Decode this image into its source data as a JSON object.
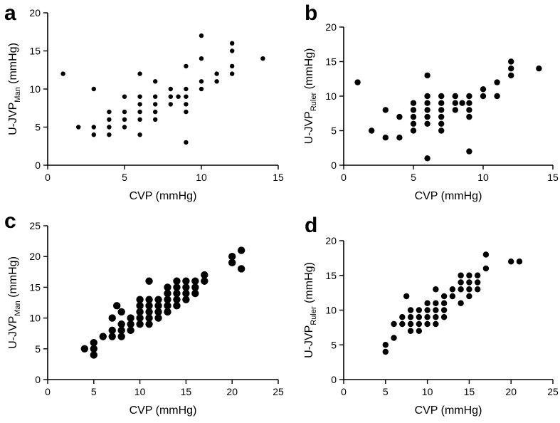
{
  "chart_data": [
    {
      "panel": "a",
      "type": "scatter",
      "xlabel": "CVP (mmHg)",
      "ylabel_main": "U-JVP",
      "ylabel_sub": "Man",
      "ylabel_tail": " (mmHg)",
      "xlim": [
        0,
        15
      ],
      "ylim": [
        0,
        20
      ],
      "xticks": [
        0,
        5,
        10,
        15
      ],
      "yticks": [
        0,
        5,
        10,
        15,
        20
      ],
      "marker": "small",
      "points": [
        [
          1,
          12
        ],
        [
          2,
          5
        ],
        [
          3,
          10
        ],
        [
          3,
          5
        ],
        [
          3,
          4
        ],
        [
          4,
          7
        ],
        [
          4,
          6
        ],
        [
          4,
          5
        ],
        [
          4,
          4
        ],
        [
          5,
          9
        ],
        [
          5,
          7
        ],
        [
          5,
          6
        ],
        [
          5,
          5
        ],
        [
          6,
          12
        ],
        [
          6,
          9
        ],
        [
          6,
          8
        ],
        [
          6,
          7
        ],
        [
          6,
          6
        ],
        [
          6,
          4
        ],
        [
          7,
          11
        ],
        [
          7,
          9
        ],
        [
          7,
          8
        ],
        [
          7,
          7
        ],
        [
          7,
          6
        ],
        [
          8,
          10
        ],
        [
          8,
          9
        ],
        [
          8,
          8
        ],
        [
          8.5,
          9
        ],
        [
          9,
          13
        ],
        [
          9,
          10
        ],
        [
          9,
          9
        ],
        [
          9,
          8
        ],
        [
          9,
          7
        ],
        [
          9,
          3
        ],
        [
          10,
          17
        ],
        [
          10,
          14
        ],
        [
          10,
          11
        ],
        [
          10,
          10
        ],
        [
          11,
          12
        ],
        [
          11,
          11
        ],
        [
          12,
          16
        ],
        [
          12,
          15
        ],
        [
          12,
          13
        ],
        [
          12,
          12
        ],
        [
          14,
          14
        ]
      ]
    },
    {
      "panel": "b",
      "type": "scatter",
      "xlabel": "CVP (mmHg)",
      "ylabel_main": "U-JVP",
      "ylabel_sub": "Ruler",
      "ylabel_tail": " (mmHg)",
      "xlim": [
        0,
        15
      ],
      "ylim": [
        0,
        20
      ],
      "xticks": [
        0,
        5,
        10,
        15
      ],
      "yticks": [
        0,
        5,
        10,
        15,
        20
      ],
      "marker": "medium",
      "points": [
        [
          1,
          12
        ],
        [
          2,
          5
        ],
        [
          3,
          8
        ],
        [
          3,
          4
        ],
        [
          4,
          7
        ],
        [
          4,
          4
        ],
        [
          5,
          9
        ],
        [
          5,
          8
        ],
        [
          5,
          7
        ],
        [
          5,
          6
        ],
        [
          5,
          5
        ],
        [
          6,
          13
        ],
        [
          6,
          10
        ],
        [
          6,
          9
        ],
        [
          6,
          8
        ],
        [
          6,
          7
        ],
        [
          6,
          6
        ],
        [
          6,
          1
        ],
        [
          7,
          10
        ],
        [
          7,
          9
        ],
        [
          7,
          8
        ],
        [
          7,
          7
        ],
        [
          7,
          6
        ],
        [
          7,
          5
        ],
        [
          8,
          10
        ],
        [
          8,
          9
        ],
        [
          8,
          8
        ],
        [
          8.5,
          9
        ],
        [
          9,
          10
        ],
        [
          9,
          9
        ],
        [
          9,
          8
        ],
        [
          9,
          7
        ],
        [
          9,
          2
        ],
        [
          10,
          11
        ],
        [
          10,
          10
        ],
        [
          11,
          12
        ],
        [
          11,
          10
        ],
        [
          12,
          15
        ],
        [
          12,
          14
        ],
        [
          12,
          13
        ],
        [
          14,
          14
        ]
      ]
    },
    {
      "panel": "c",
      "type": "scatter",
      "xlabel": "CVP (mmHg)",
      "ylabel_main": "U-JVP",
      "ylabel_sub": "Man",
      "ylabel_tail": " (mmHg)",
      "xlim": [
        0,
        25
      ],
      "ylim": [
        0,
        25
      ],
      "xticks": [
        0,
        5,
        10,
        15,
        20,
        25
      ],
      "yticks": [
        0,
        5,
        10,
        15,
        20,
        25
      ],
      "marker": "large",
      "points": [
        [
          4,
          5
        ],
        [
          5,
          6
        ],
        [
          5,
          5
        ],
        [
          5,
          4
        ],
        [
          6,
          7
        ],
        [
          7,
          10
        ],
        [
          7,
          8
        ],
        [
          7,
          7
        ],
        [
          7.5,
          12
        ],
        [
          8,
          11
        ],
        [
          8,
          9
        ],
        [
          8,
          8
        ],
        [
          8,
          7
        ],
        [
          9,
          10
        ],
        [
          9,
          9
        ],
        [
          9,
          8
        ],
        [
          10,
          13
        ],
        [
          10,
          12
        ],
        [
          10,
          11
        ],
        [
          10,
          10
        ],
        [
          10,
          9
        ],
        [
          11,
          16
        ],
        [
          11,
          13
        ],
        [
          11,
          12
        ],
        [
          11,
          11
        ],
        [
          11,
          10
        ],
        [
          11,
          9
        ],
        [
          12,
          13
        ],
        [
          12,
          12
        ],
        [
          12,
          11
        ],
        [
          12,
          10
        ],
        [
          13,
          15
        ],
        [
          13,
          14
        ],
        [
          13,
          13
        ],
        [
          13,
          12
        ],
        [
          13,
          11
        ],
        [
          14,
          16
        ],
        [
          14,
          15
        ],
        [
          14,
          14
        ],
        [
          14,
          13
        ],
        [
          14,
          12
        ],
        [
          15,
          16
        ],
        [
          15,
          15
        ],
        [
          15,
          14
        ],
        [
          15,
          13
        ],
        [
          16,
          16
        ],
        [
          16,
          15
        ],
        [
          16,
          14
        ],
        [
          17,
          17
        ],
        [
          17,
          16
        ],
        [
          20,
          20
        ],
        [
          20,
          19
        ],
        [
          21,
          21
        ],
        [
          21,
          18
        ]
      ]
    },
    {
      "panel": "d",
      "type": "scatter",
      "xlabel": "CVP (mmHg)",
      "ylabel_main": "U-JVP",
      "ylabel_sub": "Ruler",
      "ylabel_tail": " (mmHg)",
      "xlim": [
        0,
        25
      ],
      "ylim": [
        0,
        20
      ],
      "xticks": [
        0,
        5,
        10,
        15,
        20,
        25
      ],
      "yticks": [
        0,
        5,
        10,
        15,
        20
      ],
      "marker": "medium",
      "points": [
        [
          5,
          5
        ],
        [
          5,
          4
        ],
        [
          6,
          8
        ],
        [
          6,
          6
        ],
        [
          7,
          9
        ],
        [
          7,
          8
        ],
        [
          7.5,
          12
        ],
        [
          8,
          10
        ],
        [
          8,
          9
        ],
        [
          8,
          8
        ],
        [
          8,
          7
        ],
        [
          9,
          10
        ],
        [
          9,
          9
        ],
        [
          9,
          8
        ],
        [
          9,
          7
        ],
        [
          10,
          11
        ],
        [
          10,
          10
        ],
        [
          10,
          9
        ],
        [
          10,
          8
        ],
        [
          11,
          13
        ],
        [
          11,
          11
        ],
        [
          11,
          10
        ],
        [
          11,
          9
        ],
        [
          11,
          8
        ],
        [
          12,
          12
        ],
        [
          12,
          11
        ],
        [
          12,
          10
        ],
        [
          12,
          9
        ],
        [
          13,
          13
        ],
        [
          13,
          12
        ],
        [
          14,
          15
        ],
        [
          14,
          14
        ],
        [
          14,
          13
        ],
        [
          14,
          11
        ],
        [
          15,
          15
        ],
        [
          15,
          14
        ],
        [
          15,
          13
        ],
        [
          15,
          12
        ],
        [
          16,
          15
        ],
        [
          16,
          14
        ],
        [
          16,
          13
        ],
        [
          17,
          18
        ],
        [
          17,
          16
        ],
        [
          20,
          17
        ],
        [
          21,
          17
        ]
      ]
    }
  ]
}
